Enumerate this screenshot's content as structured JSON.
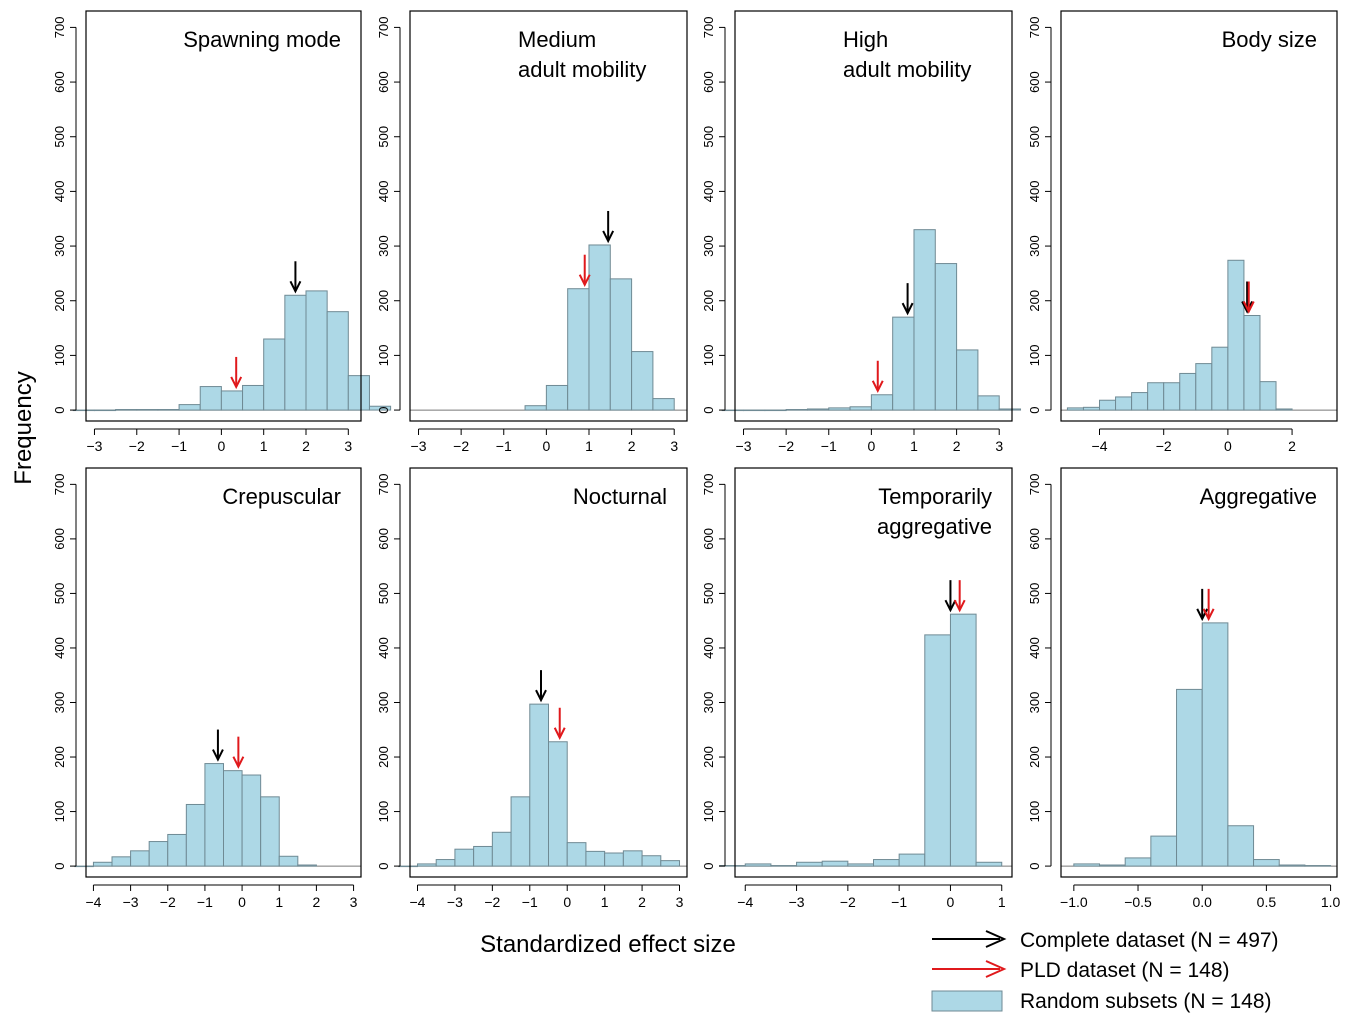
{
  "figure": {
    "ylabel": "Frequency",
    "xlabel": "Standardized effect size",
    "legend": [
      {
        "kind": "arrow",
        "color": "#000000",
        "label": "Complete dataset (N = 497)"
      },
      {
        "kind": "arrow",
        "color": "#e0191c",
        "label": "PLD dataset (N = 148)"
      },
      {
        "kind": "box",
        "color": "#add8e6",
        "label": "Random subsets (N = 148)"
      }
    ]
  },
  "colors": {
    "bar_fill": "#add8e6",
    "bar_stroke": "#6f8a94",
    "complete": "#000000",
    "pld": "#e0191c"
  },
  "chart_data": [
    {
      "type": "bar",
      "title_lines": [
        "Spawning mode"
      ],
      "title_align": "right",
      "xlim": [
        -3.2,
        3.3
      ],
      "ylim": [
        -20,
        730
      ],
      "xticks": [
        -3,
        -2,
        -1,
        0,
        1,
        2,
        3
      ],
      "xtick_labels": [
        "−3",
        "−2",
        "−1",
        "0",
        "1",
        "2",
        "3"
      ],
      "yticks": [
        0,
        100,
        200,
        300,
        400,
        500,
        600,
        700
      ],
      "bin_start": -3.5,
      "bin_width": 0.5,
      "values": [
        0,
        0,
        1,
        1,
        1,
        10,
        43,
        35,
        45,
        130,
        210,
        218,
        180,
        63,
        7
      ],
      "complete_arrow": 1.75,
      "pld_arrow": 0.35
    },
    {
      "type": "bar",
      "title_lines": [
        "Medium",
        "adult mobility"
      ],
      "title_align": "left",
      "xlim": [
        -3.2,
        3.3
      ],
      "ylim": [
        -20,
        730
      ],
      "xticks": [
        -3,
        -2,
        -1,
        0,
        1,
        2,
        3
      ],
      "xtick_labels": [
        "−3",
        "−2",
        "−1",
        "0",
        "1",
        "2",
        "3"
      ],
      "yticks": [
        0,
        100,
        200,
        300,
        400,
        500,
        600,
        700
      ],
      "bin_start": -0.5,
      "bin_width": 0.5,
      "values": [
        8,
        45,
        222,
        302,
        240,
        107,
        21
      ],
      "complete_arrow": 1.45,
      "pld_arrow": 0.9
    },
    {
      "type": "bar",
      "title_lines": [
        "High",
        "adult mobility"
      ],
      "title_align": "left",
      "xlim": [
        -3.2,
        3.3
      ],
      "ylim": [
        -20,
        730
      ],
      "xticks": [
        -3,
        -2,
        -1,
        0,
        1,
        2,
        3
      ],
      "xtick_labels": [
        "−3",
        "−2",
        "−1",
        "0",
        "1",
        "2",
        "3"
      ],
      "yticks": [
        0,
        100,
        200,
        300,
        400,
        500,
        600,
        700
      ],
      "bin_start": -3.5,
      "bin_width": 0.5,
      "values": [
        0,
        0,
        0,
        1,
        2,
        4,
        6,
        28,
        170,
        330,
        268,
        110,
        26,
        2
      ],
      "complete_arrow": 0.85,
      "pld_arrow": 0.15
    },
    {
      "type": "bar",
      "title_lines": [
        "Body size"
      ],
      "title_align": "right",
      "xlim": [
        -5.2,
        3.4
      ],
      "ylim": [
        -20,
        730
      ],
      "xticks": [
        -4,
        -2,
        0,
        2
      ],
      "xtick_labels": [
        "−4",
        "−2",
        "0",
        "2"
      ],
      "yticks": [
        0,
        100,
        200,
        300,
        400,
        500,
        600,
        700
      ],
      "bin_start": -5.0,
      "bin_width": 0.5,
      "values": [
        4,
        5,
        18,
        24,
        32,
        50,
        50,
        67,
        85,
        115,
        274,
        173,
        52,
        2
      ],
      "complete_arrow": 0.6,
      "pld_arrow": 0.65
    },
    {
      "type": "bar",
      "title_lines": [
        "Crepuscular"
      ],
      "title_align": "right",
      "xlim": [
        -4.2,
        3.2
      ],
      "ylim": [
        -20,
        730
      ],
      "xticks": [
        -4,
        -3,
        -2,
        -1,
        0,
        1,
        2,
        3
      ],
      "xtick_labels": [
        "−4",
        "−3",
        "−2",
        "−1",
        "0",
        "1",
        "2",
        "3"
      ],
      "yticks": [
        0,
        100,
        200,
        300,
        400,
        500,
        600,
        700
      ],
      "bin_start": -4.5,
      "bin_width": 0.5,
      "values": [
        0,
        7,
        17,
        28,
        45,
        58,
        113,
        188,
        175,
        167,
        127,
        18,
        2
      ],
      "complete_arrow": -0.65,
      "pld_arrow": -0.1
    },
    {
      "type": "bar",
      "title_lines": [
        "Nocturnal"
      ],
      "title_align": "right",
      "xlim": [
        -4.2,
        3.2
      ],
      "ylim": [
        -20,
        730
      ],
      "xticks": [
        -4,
        -3,
        -2,
        -1,
        0,
        1,
        2,
        3
      ],
      "xtick_labels": [
        "−4",
        "−3",
        "−2",
        "−1",
        "0",
        "1",
        "2",
        "3"
      ],
      "yticks": [
        0,
        100,
        200,
        300,
        400,
        500,
        600,
        700
      ],
      "bin_start": -4.5,
      "bin_width": 0.5,
      "values": [
        0,
        4,
        12,
        31,
        36,
        62,
        127,
        297,
        228,
        43,
        27,
        24,
        28,
        19,
        10
      ],
      "complete_arrow": -0.7,
      "pld_arrow": -0.2
    },
    {
      "type": "bar",
      "title_lines": [
        "Temporarily",
        "aggregative"
      ],
      "title_align": "right",
      "xlim": [
        -4.2,
        1.2
      ],
      "ylim": [
        -20,
        730
      ],
      "xticks": [
        -4,
        -3,
        -2,
        -1,
        0,
        1
      ],
      "xtick_labels": [
        "−4",
        "−3",
        "−2",
        "−1",
        "0",
        "1"
      ],
      "yticks": [
        0,
        100,
        200,
        300,
        400,
        500,
        600,
        700
      ],
      "bin_start": -4.5,
      "bin_width": 0.5,
      "values": [
        1,
        4,
        1,
        7,
        9,
        4,
        12,
        22,
        424,
        462,
        7
      ],
      "complete_arrow": 0.0,
      "pld_arrow": 0.18
    },
    {
      "type": "bar",
      "title_lines": [
        "Aggregative"
      ],
      "title_align": "right",
      "xlim": [
        -1.1,
        1.05
      ],
      "ylim": [
        -20,
        730
      ],
      "xticks": [
        -1.0,
        -0.5,
        0.0,
        0.5,
        1.0
      ],
      "xtick_labels": [
        "−1.0",
        "−0.5",
        "0.0",
        "0.5",
        "1.0"
      ],
      "yticks": [
        0,
        100,
        200,
        300,
        400,
        500,
        600,
        700
      ],
      "bin_start": -1.0,
      "bin_width": 0.2,
      "values": [
        4,
        2,
        15,
        55,
        324,
        446,
        74,
        12,
        2,
        1
      ],
      "complete_arrow": 0.0,
      "pld_arrow": 0.05
    }
  ]
}
